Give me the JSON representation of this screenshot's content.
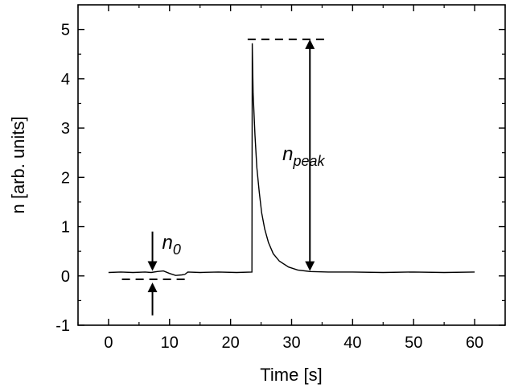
{
  "chart_data": {
    "type": "line",
    "title": "",
    "xlabel": "Time [s]",
    "ylabel": "n [arb. units]",
    "xlim": [
      -5,
      65
    ],
    "ylim": [
      -1,
      5.5
    ],
    "x_ticks": [
      0,
      10,
      20,
      30,
      40,
      50,
      60
    ],
    "y_ticks": [
      -1,
      0,
      1,
      2,
      3,
      4,
      5
    ],
    "x_tick_labels": [
      "0",
      "10",
      "20",
      "30",
      "40",
      "50",
      "60"
    ],
    "y_tick_labels": [
      "-1",
      "0",
      "1",
      "2",
      "3",
      "4",
      "5"
    ],
    "grid": false,
    "series": [
      {
        "color": "#000000",
        "x": [
          0,
          2,
          4,
          6,
          7,
          8,
          9,
          10,
          11,
          12,
          12.5,
          13,
          15,
          18,
          21,
          23.5,
          23.55,
          23.7,
          24.0,
          24.3,
          24.7,
          25.1,
          25.6,
          26.2,
          27.0,
          28.0,
          29.5,
          31.0,
          33.0,
          36.0,
          40,
          45,
          50,
          55,
          60
        ],
        "y": [
          0.07,
          0.08,
          0.07,
          0.08,
          0.07,
          0.09,
          0.1,
          0.05,
          0.01,
          0.02,
          0.03,
          0.08,
          0.07,
          0.08,
          0.07,
          0.08,
          4.72,
          3.7,
          2.85,
          2.2,
          1.7,
          1.28,
          0.95,
          0.68,
          0.45,
          0.3,
          0.18,
          0.12,
          0.09,
          0.08,
          0.08,
          0.07,
          0.08,
          0.07,
          0.08
        ]
      }
    ],
    "annotations": {
      "n0": {
        "base": "n",
        "sub": "0",
        "x_data": 7.2,
        "level": 0.07,
        "lower_ref": -0.07
      },
      "npeak": {
        "base": "n",
        "sub": "peak",
        "x_data": 33,
        "level": 4.8,
        "lower_ref": 0.1
      }
    }
  }
}
